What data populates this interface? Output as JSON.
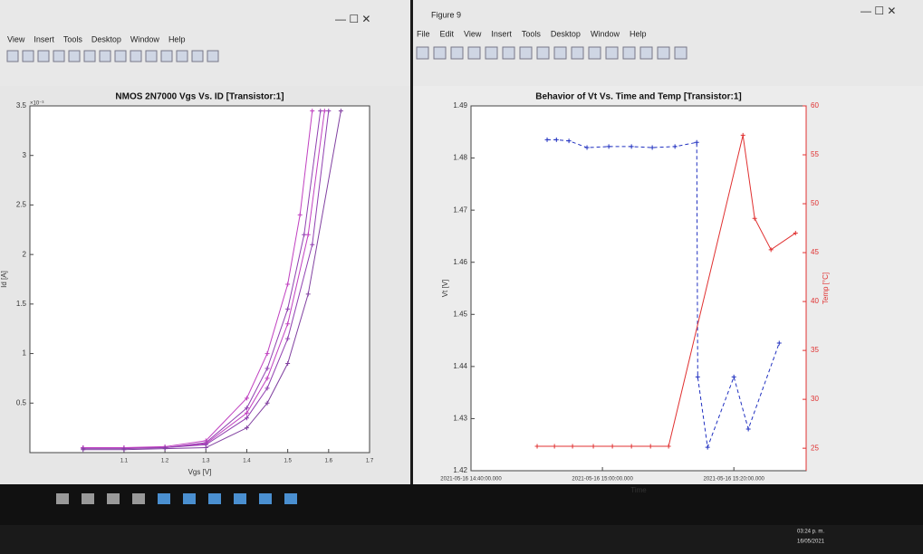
{
  "left_window": {
    "menu": [
      "View",
      "Insert",
      "Tools",
      "Desktop",
      "Window",
      "Help"
    ],
    "chart_data": {
      "type": "line",
      "title": "NMOS 2N7000 Vgs Vs. ID [Transistor:1]",
      "x_label": "Vgs [V]",
      "y_label": "Id [A]",
      "y_multiplier": "×10⁻³",
      "xlim": [
        0.87,
        1.7
      ],
      "xticks": [
        1.1,
        1.2,
        1.3,
        1.4,
        1.5,
        1.6,
        1.7
      ],
      "ylim": [
        0,
        3.5
      ],
      "yticks": [
        0.5,
        1,
        1.5,
        2,
        2.5,
        3,
        3.5
      ],
      "series": [
        {
          "color": "#c040c0",
          "x": [
            1.0,
            1.1,
            1.2,
            1.3,
            1.4,
            1.45,
            1.5,
            1.53,
            1.56
          ],
          "values": [
            0.05,
            0.05,
            0.06,
            0.12,
            0.55,
            1.0,
            1.7,
            2.4,
            3.45
          ]
        },
        {
          "color": "#9040b0",
          "x": [
            1.0,
            1.1,
            1.2,
            1.3,
            1.4,
            1.45,
            1.5,
            1.54,
            1.58
          ],
          "values": [
            0.05,
            0.05,
            0.05,
            0.1,
            0.45,
            0.85,
            1.45,
            2.2,
            3.45
          ]
        },
        {
          "color": "#c040c0",
          "x": [
            1.0,
            1.1,
            1.2,
            1.3,
            1.4,
            1.45,
            1.5,
            1.55,
            1.59
          ],
          "values": [
            0.05,
            0.05,
            0.05,
            0.09,
            0.4,
            0.75,
            1.3,
            2.2,
            3.45
          ]
        },
        {
          "color": "#9040b0",
          "x": [
            1.0,
            1.1,
            1.2,
            1.3,
            1.4,
            1.45,
            1.5,
            1.56,
            1.6
          ],
          "values": [
            0.04,
            0.04,
            0.05,
            0.08,
            0.35,
            0.65,
            1.15,
            2.1,
            3.45
          ]
        },
        {
          "color": "#8040a0",
          "x": [
            1.0,
            1.1,
            1.2,
            1.3,
            1.4,
            1.45,
            1.5,
            1.55,
            1.63
          ],
          "values": [
            0.03,
            0.03,
            0.04,
            0.05,
            0.25,
            0.5,
            0.9,
            1.6,
            3.45
          ]
        }
      ]
    }
  },
  "right_window": {
    "title": "Figure 9",
    "menu": [
      "File",
      "Edit",
      "View",
      "Insert",
      "Tools",
      "Desktop",
      "Window",
      "Help"
    ],
    "chart_data": {
      "type": "line",
      "title": "Behavior of Vt Vs. Time and Temp [Transistor:1]",
      "x_label": "Time",
      "y_label": "Vt [V]",
      "y2_label": "Temp [°C]",
      "xlim": [
        "2021-05-16 14:40:00.000",
        "2021-05-16 15:31:00.000"
      ],
      "xticks": [
        "2021-05-16 14:40:00.000",
        "2021-05-16 15:00:00.000",
        "2021-05-16 15:20:00.000"
      ],
      "ylim": [
        1.42,
        1.49
      ],
      "yticks": [
        1.42,
        1.43,
        1.44,
        1.45,
        1.46,
        1.47,
        1.48,
        1.49
      ],
      "y2lim": [
        22.7,
        60
      ],
      "y2ticks": [
        25,
        30,
        35,
        40,
        45,
        50,
        55,
        60
      ],
      "series": [
        {
          "color": "#2030c0",
          "x": [
            "2021-05-16 14:51:35.000",
            "2021-05-16 14:53:00.000",
            "2021-05-16 14:54:54.000",
            "2021-05-16 14:57:39.000",
            "2021-05-16 15:00:58.000",
            "2021-05-16 15:04:25.000",
            "2021-05-16 15:07:35.000",
            "2021-05-16 15:11:02.000",
            "2021-05-16 15:14:21.000",
            "2021-05-16 15:14:30.000",
            "2021-05-16 15:16:00.000",
            "2021-05-16 15:20:00.000",
            "2021-05-16 15:22:12.000",
            "2021-05-16 15:26:54.000"
          ],
          "values": [
            1.4835,
            1.4835,
            1.4833,
            1.482,
            1.4822,
            1.4822,
            1.482,
            1.4822,
            1.483,
            1.438,
            1.4245,
            1.438,
            1.428,
            1.4445
          ]
        },
        {
          "color": "#e03030",
          "axis": "y2",
          "x": [
            "2021-05-16 14:50:04.000",
            "2021-05-16 14:52:42.000",
            "2021-05-16 14:55:27.000",
            "2021-05-16 14:58:37.000",
            "2021-05-16 15:01:31.000",
            "2021-05-16 15:04:25.000",
            "2021-05-16 15:07:19.000",
            "2021-05-16 15:10:04.000",
            "2021-05-16 15:21:23.000",
            "2021-05-16 15:23:10.000",
            "2021-05-16 15:25:39.000",
            "2021-05-16 15:29:23.000"
          ],
          "values": [
            25.2,
            25.2,
            25.2,
            25.2,
            25.2,
            25.2,
            25.2,
            25.2,
            57.0,
            48.5,
            45.3,
            47.0
          ]
        }
      ]
    }
  },
  "taskbar": {
    "time": "03:24 p. m.",
    "date": "16/05/2021"
  }
}
